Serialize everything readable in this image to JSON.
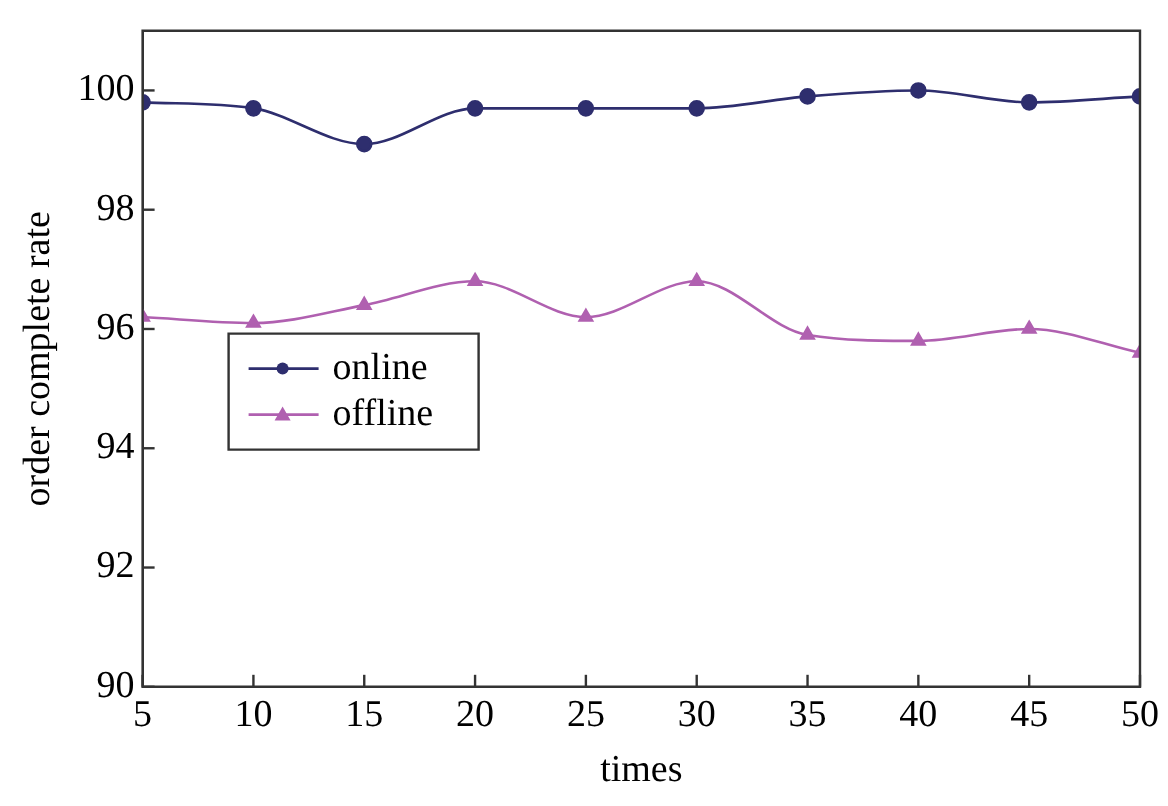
{
  "chart_data": {
    "type": "line",
    "xlabel": "times",
    "ylabel": "order complete rate",
    "x": [
      5,
      10,
      15,
      20,
      25,
      30,
      35,
      40,
      45,
      50
    ],
    "series": [
      {
        "name": "online",
        "color": "#2e2e6e",
        "marker": "circle",
        "values": [
          99.8,
          99.7,
          99.1,
          99.7,
          99.7,
          99.7,
          99.9,
          100.0,
          99.8,
          99.9
        ]
      },
      {
        "name": "offline",
        "color": "#b060b0",
        "marker": "triangle",
        "values": [
          96.2,
          96.1,
          96.4,
          96.8,
          96.2,
          96.8,
          95.9,
          95.8,
          96.0,
          95.6
        ]
      }
    ],
    "xlim": [
      5,
      50
    ],
    "xticks": [
      5,
      10,
      15,
      20,
      25,
      30,
      35,
      40,
      45,
      50
    ],
    "ylim": [
      90,
      101
    ],
    "yticks": [
      90,
      92,
      94,
      96,
      98,
      100
    ],
    "grid": false,
    "legend": "left",
    "line_style": "solid"
  }
}
